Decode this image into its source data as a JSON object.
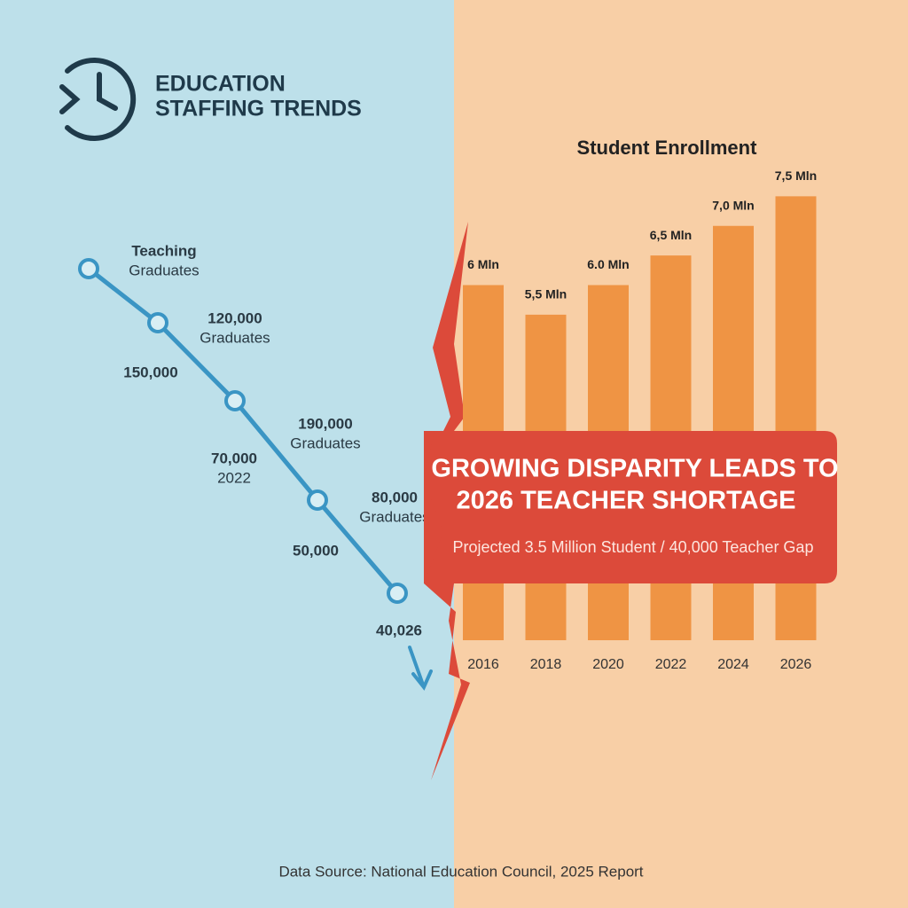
{
  "header": {
    "title_lines": [
      "EDUCATION",
      "STAFFING TRENDS"
    ]
  },
  "line_labels": [
    [
      "Teaching",
      "Graduates"
    ],
    [
      "120,000",
      "Graduates"
    ],
    [
      "150,000"
    ],
    [
      "190,000",
      "Graduates"
    ],
    [
      "70,000",
      "2022"
    ],
    [
      "80,000",
      "Graduates"
    ],
    [
      "50,000"
    ],
    [
      "40,026"
    ]
  ],
  "chart_data": {
    "type": "bar",
    "title": "Student Enrollment",
    "categories": [
      "2016",
      "2018",
      "2020",
      "2022",
      "2024",
      "2026"
    ],
    "values": [
      6,
      5.5,
      6.0,
      6.5,
      7.0,
      7.5
    ],
    "value_labels": [
      "6 Mln",
      "5,5 Mln",
      "6.0 Mln",
      "6,5 Mln",
      "7,0 Mln",
      "7,5 Mln"
    ],
    "color": "#ef9444",
    "ylim": [
      0,
      8
    ]
  },
  "callout": {
    "headline_lines": [
      "GROWING DISPARITY LEADS TO",
      "2026 TEACHER SHORTAGE"
    ],
    "subtitle": "Projected 3.5 Million Student / 40,000 Teacher Gap"
  },
  "source": "Data Source: National Education Council, 2025 Report"
}
